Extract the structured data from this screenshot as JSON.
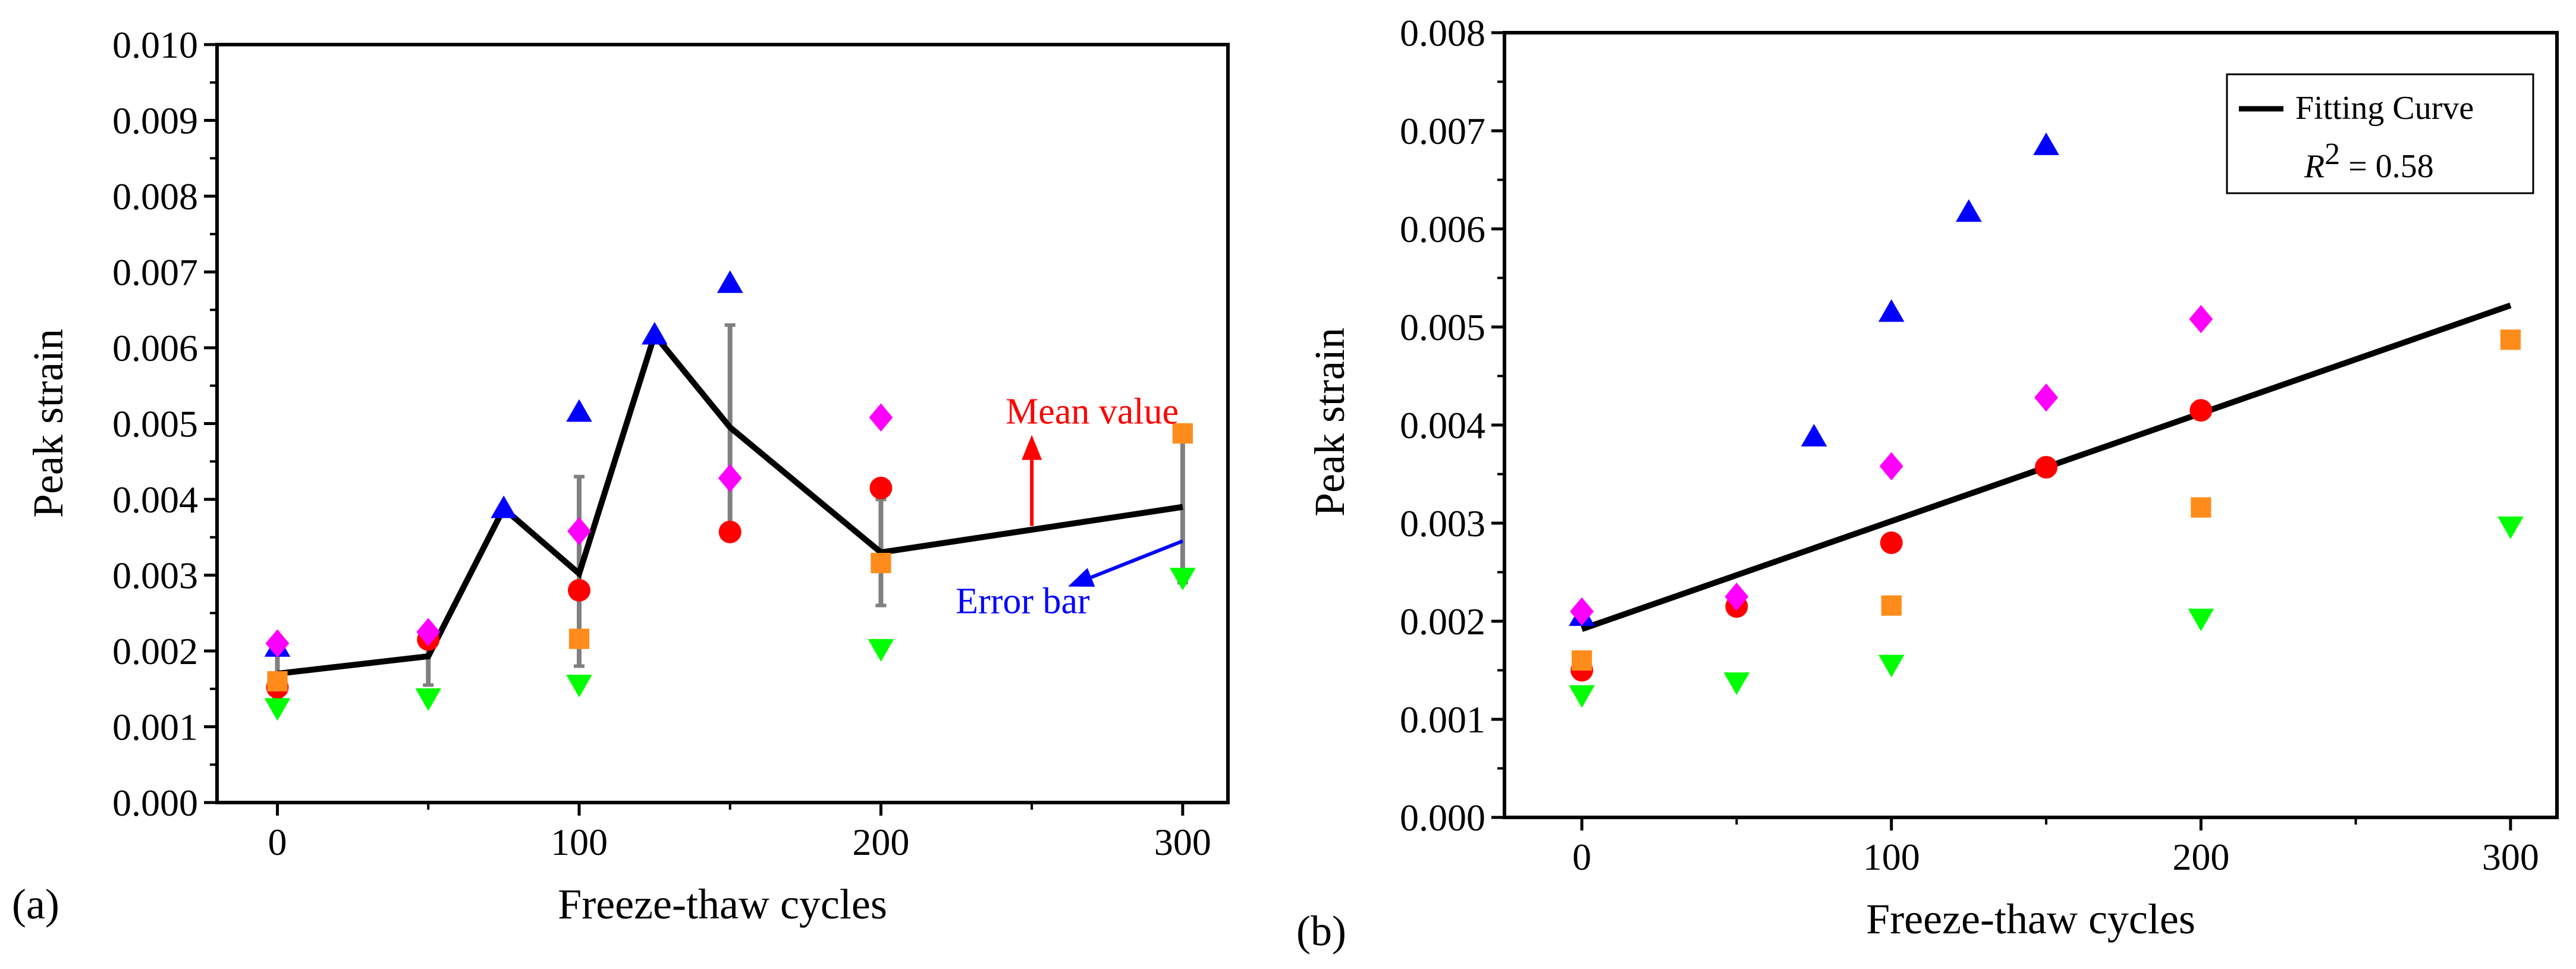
{
  "chart_data": [
    {
      "panel_label": "(a)",
      "type": "scatter",
      "xlabel": "Freeze-thaw cycles",
      "ylabel": "Peak strain",
      "xlim": [
        -20,
        315
      ],
      "ylim": [
        0,
        0.01
      ],
      "xticks": [
        0,
        100,
        200,
        300
      ],
      "yticks": [
        0.0,
        0.001,
        0.002,
        0.003,
        0.004,
        0.005,
        0.006,
        0.007,
        0.008,
        0.009,
        0.01
      ],
      "ytick_labels": [
        "0.000",
        "0.001",
        "0.002",
        "0.003",
        "0.004",
        "0.005",
        "0.006",
        "0.007",
        "0.008",
        "0.009",
        "0.010"
      ],
      "xtick_labels": [
        "0",
        "100",
        "200",
        "300"
      ],
      "series": [
        {
          "marker": "circle",
          "color": "#ff0000",
          "points": [
            [
              0,
              0.00152
            ],
            [
              50,
              0.00215
            ],
            [
              100,
              0.0028
            ],
            [
              150,
              0.00357
            ],
            [
              200,
              0.00415
            ]
          ]
        },
        {
          "marker": "square",
          "color": "#ff8c1a",
          "points": [
            [
              0,
              0.0016
            ],
            [
              100,
              0.00216
            ],
            [
              200,
              0.00316
            ],
            [
              300,
              0.00487
            ]
          ]
        },
        {
          "marker": "triangle-up",
          "color": "#0000ff",
          "points": [
            [
              0,
              0.00205
            ],
            [
              75,
              0.00388
            ],
            [
              100,
              0.00515
            ],
            [
              125,
              0.00617
            ],
            [
              150,
              0.00685
            ]
          ]
        },
        {
          "marker": "triangle-down",
          "color": "#00ff00",
          "points": [
            [
              0,
              0.00125
            ],
            [
              50,
              0.00138
            ],
            [
              100,
              0.00156
            ],
            [
              200,
              0.00203
            ],
            [
              300,
              0.00297
            ]
          ]
        },
        {
          "marker": "diamond",
          "color": "#ff00ff",
          "points": [
            [
              0,
              0.0021
            ],
            [
              50,
              0.00225
            ],
            [
              100,
              0.00358
            ],
            [
              150,
              0.00428
            ],
            [
              200,
              0.00508
            ]
          ]
        }
      ],
      "mean_line": {
        "color": "#000000",
        "points": [
          [
            0,
            0.0017
          ],
          [
            50,
            0.00193
          ],
          [
            75,
            0.00388
          ],
          [
            100,
            0.00302
          ],
          [
            125,
            0.00617
          ],
          [
            150,
            0.00495
          ],
          [
            200,
            0.0033
          ],
          [
            300,
            0.0039
          ]
        ]
      },
      "error_bars": {
        "color": "#808080",
        "items": [
          {
            "x": 0,
            "low": 0.00138,
            "high": 0.00202
          },
          {
            "x": 50,
            "low": 0.00155,
            "high": 0.0023
          },
          {
            "x": 100,
            "low": 0.0018,
            "high": 0.0043
          },
          {
            "x": 150,
            "low": 0.0036,
            "high": 0.0063
          },
          {
            "x": 200,
            "low": 0.0026,
            "high": 0.004
          },
          {
            "x": 300,
            "low": 0.0029,
            "high": 0.00487
          }
        ]
      },
      "annotations": [
        {
          "text": "Mean value",
          "color": "#ff0000",
          "arrow_from": [
            250,
            0.00365
          ],
          "arrow_to": [
            250,
            0.00485
          ],
          "text_at": [
            270,
            0.005
          ]
        },
        {
          "text": "Error bar",
          "color": "#0000ff",
          "arrow_from": [
            300,
            0.00345
          ],
          "arrow_to": [
            262,
            0.00285
          ],
          "text_at": [
            247,
            0.0025
          ]
        }
      ]
    },
    {
      "panel_label": "(b)",
      "type": "scatter",
      "xlabel": "Freeze-thaw cycles",
      "ylabel": "Peak strain",
      "xlim": [
        -25,
        315
      ],
      "ylim": [
        0,
        0.008
      ],
      "xticks": [
        0,
        100,
        200,
        300
      ],
      "yticks": [
        0.0,
        0.001,
        0.002,
        0.003,
        0.004,
        0.005,
        0.006,
        0.007,
        0.008
      ],
      "ytick_labels": [
        "0.000",
        "0.001",
        "0.002",
        "0.003",
        "0.004",
        "0.005",
        "0.006",
        "0.007",
        "0.008"
      ],
      "xtick_labels": [
        "0",
        "100",
        "200",
        "300"
      ],
      "series": [
        {
          "marker": "circle",
          "color": "#ff0000",
          "points": [
            [
              0,
              0.0015
            ],
            [
              50,
              0.00215
            ],
            [
              100,
              0.0028
            ],
            [
              150,
              0.00357
            ],
            [
              200,
              0.00415
            ]
          ]
        },
        {
          "marker": "square",
          "color": "#ff8c1a",
          "points": [
            [
              0,
              0.0016
            ],
            [
              100,
              0.00216
            ],
            [
              200,
              0.00316
            ],
            [
              300,
              0.00487
            ]
          ]
        },
        {
          "marker": "triangle-up",
          "color": "#0000ff",
          "points": [
            [
              0,
              0.00205
            ],
            [
              75,
              0.00388
            ],
            [
              100,
              0.00515
            ],
            [
              125,
              0.00617
            ],
            [
              150,
              0.00685
            ]
          ]
        },
        {
          "marker": "triangle-down",
          "color": "#00ff00",
          "points": [
            [
              0,
              0.00125
            ],
            [
              50,
              0.00138
            ],
            [
              100,
              0.00156
            ],
            [
              200,
              0.00203
            ],
            [
              300,
              0.00297
            ]
          ]
        },
        {
          "marker": "diamond",
          "color": "#ff00ff",
          "points": [
            [
              0,
              0.0021
            ],
            [
              50,
              0.00225
            ],
            [
              100,
              0.00358
            ],
            [
              150,
              0.00428
            ],
            [
              200,
              0.00508
            ]
          ]
        }
      ],
      "fit_line": {
        "name": "Fitting Curve",
        "color": "#000000",
        "points": [
          [
            0,
            0.00192
          ],
          [
            300,
            0.00522
          ]
        ]
      },
      "legend": {
        "position": "top-right",
        "entry": "Fitting Curve",
        "r2_symbol": "R",
        "r2_power": "2",
        "r2_value": " = 0.58"
      }
    }
  ]
}
